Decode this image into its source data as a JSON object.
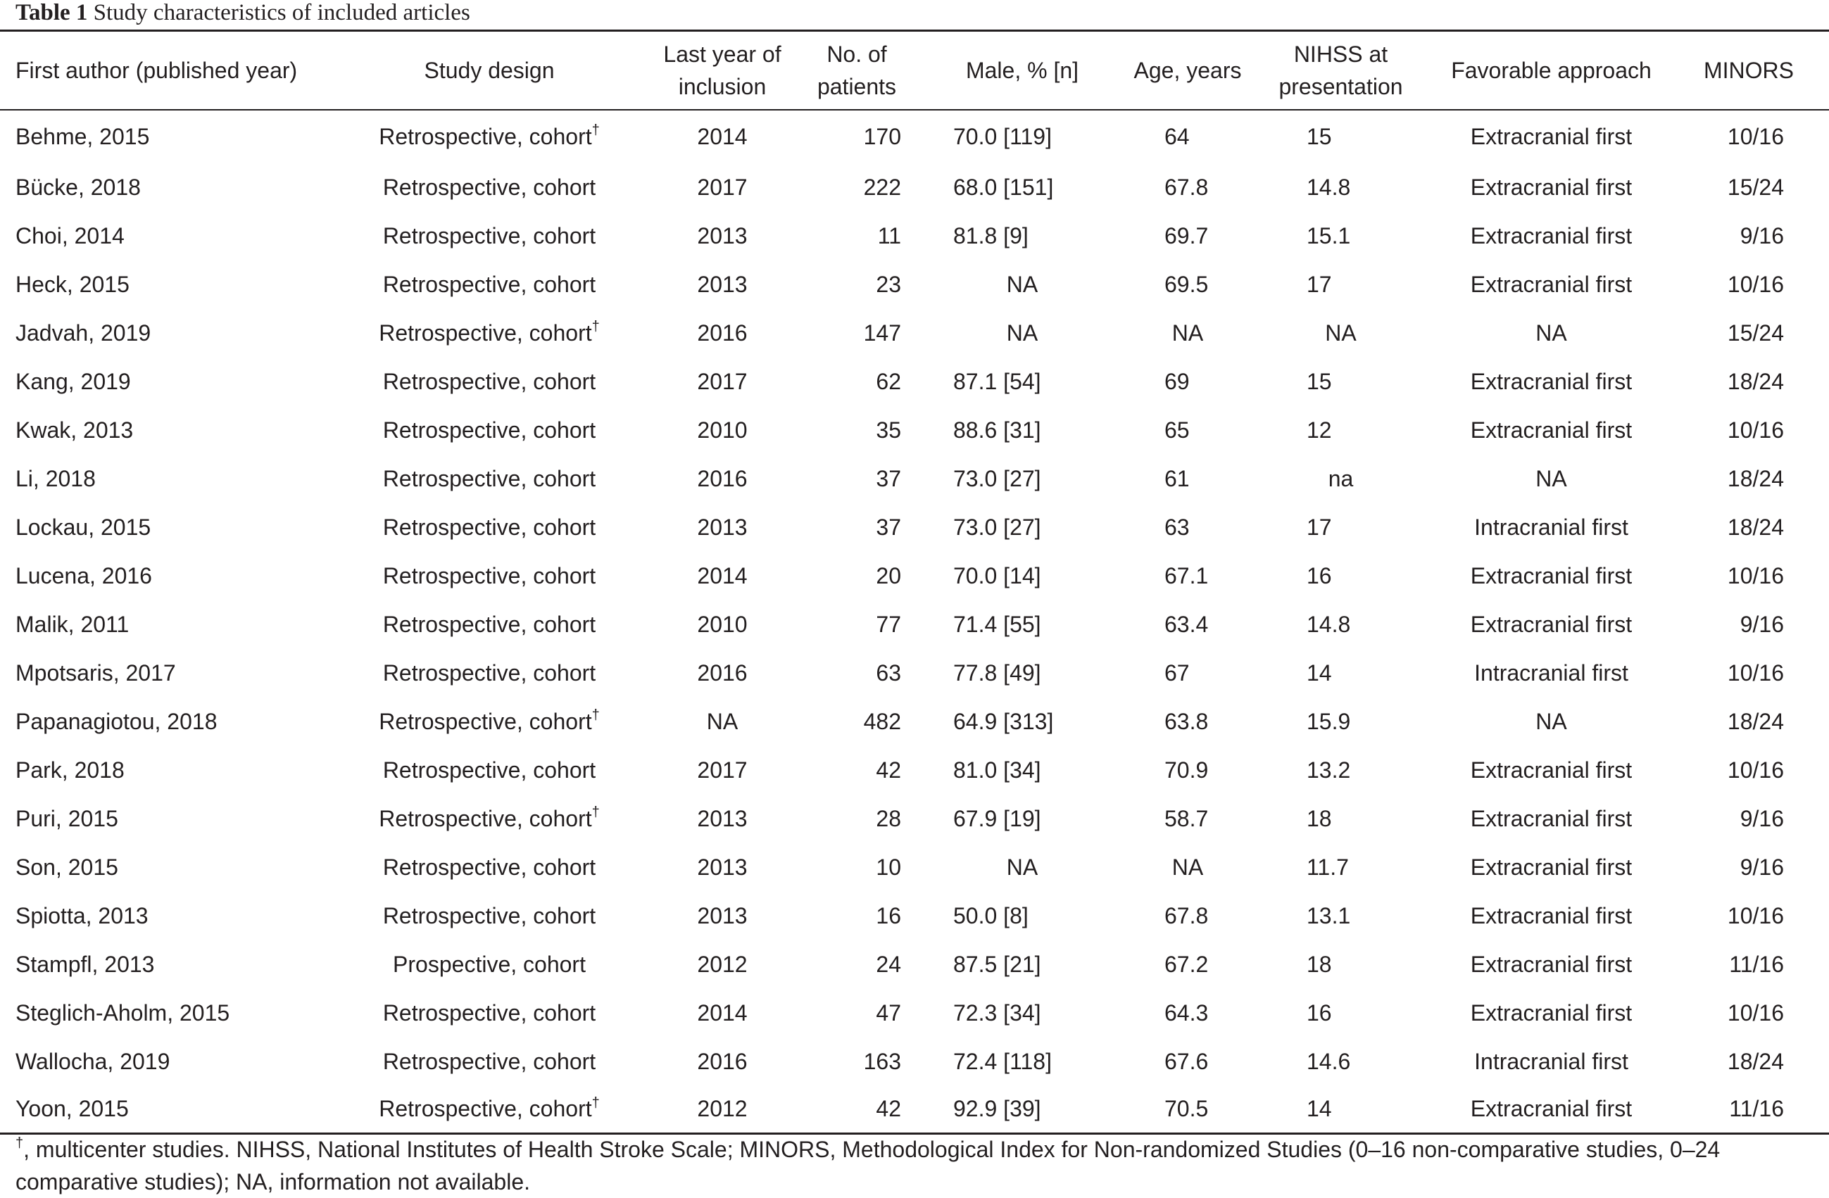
{
  "caption": {
    "label": "Table 1",
    "title": "Study characteristics of included articles"
  },
  "table": {
    "headers": {
      "author": "First author (published year)",
      "design": "Study design",
      "last_year_l1": "Last year of",
      "last_year_l2": "inclusion",
      "patients_l1": "No. of",
      "patients_l2": "patients",
      "male": "Male, % [n]",
      "age": "Age, years",
      "nihss_l1": "NIHSS at",
      "nihss_l2": "presentation",
      "approach": "Favorable approach",
      "minors": "MINORS"
    },
    "dagger": "†",
    "rows": [
      {
        "author": "Behme, 2015",
        "design": "Retrospective, cohort",
        "multicenter": true,
        "last_year": "2014",
        "patients": "170",
        "male": "70.0 [119]",
        "age": "64",
        "nihss": "15",
        "approach": "Extracranial first",
        "minors": "10/16"
      },
      {
        "author": "Bücke, 2018",
        "design": "Retrospective, cohort",
        "multicenter": false,
        "last_year": "2017",
        "patients": "222",
        "male": "68.0 [151]",
        "age": "67.8",
        "nihss": "14.8",
        "approach": "Extracranial first",
        "minors": "15/24"
      },
      {
        "author": "Choi, 2014",
        "design": "Retrospective, cohort",
        "multicenter": false,
        "last_year": "2013",
        "patients": "11",
        "male": "81.8 [9]",
        "age": "69.7",
        "nihss": "15.1",
        "approach": "Extracranial first",
        "minors": "9/16"
      },
      {
        "author": "Heck, 2015",
        "design": "Retrospective, cohort",
        "multicenter": false,
        "last_year": "2013",
        "patients": "23",
        "male": "NA",
        "age": "69.5",
        "nihss": "17",
        "approach": "Extracranial first",
        "minors": "10/16"
      },
      {
        "author": "Jadvah, 2019",
        "design": "Retrospective, cohort",
        "multicenter": true,
        "last_year": "2016",
        "patients": "147",
        "male": "NA",
        "age": "NA",
        "nihss": "NA",
        "approach": "NA",
        "minors": "15/24"
      },
      {
        "author": "Kang, 2019",
        "design": "Retrospective, cohort",
        "multicenter": false,
        "last_year": "2017",
        "patients": "62",
        "male": "87.1 [54]",
        "age": "69",
        "nihss": "15",
        "approach": "Extracranial first",
        "minors": "18/24"
      },
      {
        "author": "Kwak, 2013",
        "design": "Retrospective, cohort",
        "multicenter": false,
        "last_year": "2010",
        "patients": "35",
        "male": "88.6 [31]",
        "age": "65",
        "nihss": "12",
        "approach": "Extracranial first",
        "minors": "10/16"
      },
      {
        "author": "Li, 2018",
        "design": "Retrospective, cohort",
        "multicenter": false,
        "last_year": "2016",
        "patients": "37",
        "male": "73.0 [27]",
        "age": "61",
        "nihss": "na",
        "approach": "NA",
        "minors": "18/24"
      },
      {
        "author": "Lockau, 2015",
        "design": "Retrospective, cohort",
        "multicenter": false,
        "last_year": "2013",
        "patients": "37",
        "male": "73.0 [27]",
        "age": "63",
        "nihss": "17",
        "approach": "Intracranial first",
        "minors": "18/24"
      },
      {
        "author": "Lucena, 2016",
        "design": "Retrospective, cohort",
        "multicenter": false,
        "last_year": "2014",
        "patients": "20",
        "male": "70.0 [14]",
        "age": "67.1",
        "nihss": "16",
        "approach": "Extracranial first",
        "minors": "10/16"
      },
      {
        "author": "Malik, 2011",
        "design": "Retrospective, cohort",
        "multicenter": false,
        "last_year": "2010",
        "patients": "77",
        "male": "71.4 [55]",
        "age": "63.4",
        "nihss": "14.8",
        "approach": "Extracranial first",
        "minors": "9/16"
      },
      {
        "author": "Mpotsaris, 2017",
        "design": "Retrospective, cohort",
        "multicenter": false,
        "last_year": "2016",
        "patients": "63",
        "male": "77.8 [49]",
        "age": "67",
        "nihss": "14",
        "approach": "Intracranial first",
        "minors": "10/16"
      },
      {
        "author": "Papanagiotou, 2018",
        "design": "Retrospective, cohort",
        "multicenter": true,
        "last_year": "NA",
        "patients": "482",
        "male": "64.9 [313]",
        "age": "63.8",
        "nihss": "15.9",
        "approach": "NA",
        "minors": "18/24"
      },
      {
        "author": "Park, 2018",
        "design": "Retrospective, cohort",
        "multicenter": false,
        "last_year": "2017",
        "patients": "42",
        "male": "81.0 [34]",
        "age": "70.9",
        "nihss": "13.2",
        "approach": "Extracranial first",
        "minors": "10/16"
      },
      {
        "author": "Puri, 2015",
        "design": "Retrospective, cohort",
        "multicenter": true,
        "last_year": "2013",
        "patients": "28",
        "male": "67.9 [19]",
        "age": "58.7",
        "nihss": "18",
        "approach": "Extracranial first",
        "minors": "9/16"
      },
      {
        "author": "Son, 2015",
        "design": "Retrospective, cohort",
        "multicenter": false,
        "last_year": "2013",
        "patients": "10",
        "male": "NA",
        "age": "NA",
        "nihss": "11.7",
        "approach": "Extracranial first",
        "minors": "9/16"
      },
      {
        "author": "Spiotta, 2013",
        "design": "Retrospective, cohort",
        "multicenter": false,
        "last_year": "2013",
        "patients": "16",
        "male": "50.0 [8]",
        "age": "67.8",
        "nihss": "13.1",
        "approach": "Extracranial first",
        "minors": "10/16"
      },
      {
        "author": "Stampfl, 2013",
        "design": "Prospective, cohort",
        "multicenter": false,
        "last_year": "2012",
        "patients": "24",
        "male": "87.5 [21]",
        "age": "67.2",
        "nihss": "18",
        "approach": "Extracranial first",
        "minors": "11/16"
      },
      {
        "author": "Steglich-Aholm, 2015",
        "design": "Retrospective, cohort",
        "multicenter": false,
        "last_year": "2014",
        "patients": "47",
        "male": "72.3 [34]",
        "age": "64.3",
        "nihss": "16",
        "approach": "Extracranial first",
        "minors": "10/16"
      },
      {
        "author": "Wallocha, 2019",
        "design": "Retrospective, cohort",
        "multicenter": false,
        "last_year": "2016",
        "patients": "163",
        "male": "72.4 [118]",
        "age": "67.6",
        "nihss": "14.6",
        "approach": "Intracranial first",
        "minors": "18/24"
      },
      {
        "author": "Yoon, 2015",
        "design": "Retrospective, cohort",
        "multicenter": true,
        "last_year": "2012",
        "patients": "42",
        "male": "92.9 [39]",
        "age": "70.5",
        "nihss": "14",
        "approach": "Extracranial first",
        "minors": "11/16"
      }
    ]
  },
  "footnote": {
    "dagger": "†",
    "text": ", multicenter studies. NIHSS, National Institutes of Health Stroke Scale; MINORS, Methodological Index for Non-randomized Studies (0–16 non-comparative studies, 0–24 comparative studies); NA, information not available."
  }
}
